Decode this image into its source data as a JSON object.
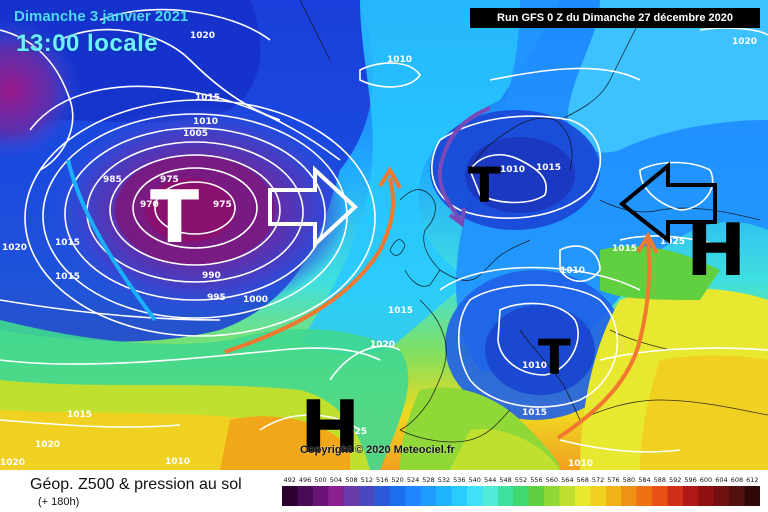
{
  "header": {
    "date": "Dimanche 3 janvier 2021",
    "time": "13:00 locale",
    "run": "Run GFS 0 Z du Dimanche 27 décembre 2020"
  },
  "copyright": "Copyright © 2020 Meteociel.fr",
  "legend": {
    "title": "Géop. Z500 & pression au sol",
    "subtitle": "(+ 180h)",
    "ticks": [
      "492",
      "496",
      "500",
      "504",
      "508",
      "512",
      "516",
      "520",
      "524",
      "528",
      "532",
      "536",
      "540",
      "544",
      "548",
      "552",
      "556",
      "560",
      "564",
      "568",
      "572",
      "576",
      "580",
      "584",
      "588",
      "592",
      "596",
      "600",
      "604",
      "608",
      "612"
    ],
    "colors": [
      "#2b0030",
      "#4a0a55",
      "#6a1478",
      "#8a2090",
      "#6a3aa8",
      "#4a48c0",
      "#2a5ad8",
      "#1a6ef0",
      "#2086ff",
      "#209cff",
      "#20b4ff",
      "#28ccff",
      "#40e0f8",
      "#50ecd8",
      "#40e0a0",
      "#40d870",
      "#60d040",
      "#90d838",
      "#c0e030",
      "#e8e830",
      "#f0d020",
      "#f0b418",
      "#f09014",
      "#f07014",
      "#e85018",
      "#d03018",
      "#b01818",
      "#901010",
      "#701010",
      "#501010",
      "#300808"
    ]
  },
  "isobars": [
    "1020",
    "1015",
    "1010",
    "1005",
    "985",
    "975",
    "970",
    "975",
    "990",
    "995",
    "1000",
    "1010",
    "1015",
    "1020",
    "1015",
    "1010",
    "1015",
    "1020",
    "1010",
    "1015",
    "1010",
    "1015",
    "1020",
    "1025",
    "1010",
    "1015",
    "1010",
    "1020",
    "1015",
    "1025",
    "1020"
  ],
  "pressure_centers": {
    "low_atlantic": "T",
    "low_north_sea": "T",
    "low_italy": "T",
    "high_azores": "H",
    "high_russia": "H"
  }
}
